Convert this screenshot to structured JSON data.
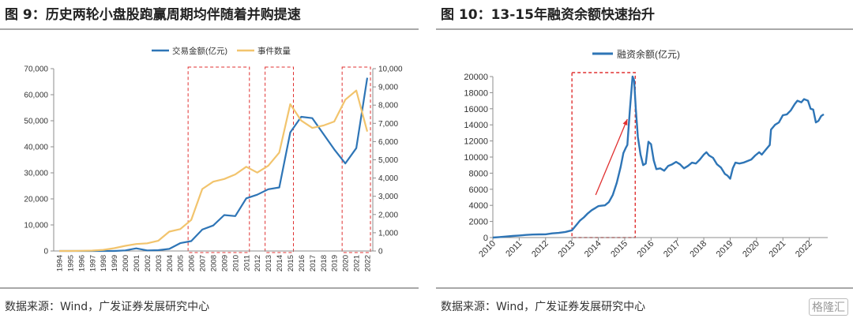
{
  "left": {
    "title": "图 9：历史两轮小盘股跑赢周期均伴随着并购提速",
    "source": "数据来源：Wind，广发证券发展研究中心"
  },
  "right": {
    "title": "图 10：13-15年融资余额快速抬升",
    "source": "数据来源：Wind，广发证券发展研究中心",
    "watermark": "格隆汇"
  },
  "colors": {
    "blue": "#2e75b6",
    "gold": "#f2c46d",
    "red": "#e03030",
    "axis": "#8c8c8c"
  },
  "chart_data": [
    {
      "type": "line",
      "title": "",
      "categories": [
        "1994",
        "1995",
        "1996",
        "1997",
        "1998",
        "1999",
        "2000",
        "2001",
        "2002",
        "2003",
        "2004",
        "2005",
        "2006",
        "2007",
        "2008",
        "2009",
        "2010",
        "2011",
        "2012",
        "2013",
        "2014",
        "2015",
        "2016",
        "2017",
        "2018",
        "2019",
        "2020",
        "2021",
        "2022"
      ],
      "series": [
        {
          "name": "交易金额(亿元)",
          "axis": "left",
          "color": "#2e75b6",
          "values": [
            0,
            0,
            0,
            0,
            0,
            0,
            200,
            1000,
            200,
            300,
            800,
            3000,
            3800,
            8200,
            9800,
            13800,
            13400,
            20200,
            21600,
            23700,
            24400,
            45500,
            51500,
            51000,
            45000,
            39000,
            33600,
            39500,
            66500
          ]
        },
        {
          "name": "事件数量",
          "axis": "right",
          "color": "#f2c46d",
          "values": [
            0,
            0,
            10,
            20,
            60,
            150,
            280,
            380,
            420,
            560,
            1060,
            1200,
            1700,
            3400,
            3800,
            3950,
            4200,
            4620,
            4300,
            4680,
            5400,
            8050,
            7150,
            6750,
            6880,
            7100,
            8300,
            8800,
            6550
          ]
        }
      ],
      "y_left": {
        "min": 0,
        "max": 70000,
        "ticks": [
          0,
          10000,
          20000,
          30000,
          40000,
          50000,
          60000,
          70000
        ],
        "tick_labels": [
          "0",
          "10,000",
          "20,000",
          "30,000",
          "40,000",
          "50,000",
          "60,000",
          "70,000"
        ]
      },
      "y_right": {
        "min": 0,
        "max": 10000,
        "ticks": [
          0,
          1000,
          2000,
          3000,
          4000,
          5000,
          6000,
          7000,
          8000,
          9000,
          10000
        ],
        "tick_labels": [
          "0",
          "1,000",
          "2,000",
          "3,000",
          "4,000",
          "5,000",
          "6,000",
          "7,000",
          "8,000",
          "9,000",
          "10,000"
        ]
      },
      "highlight_ranges": [
        [
          "2006",
          "2011"
        ],
        [
          "2013",
          "2015"
        ],
        [
          "2020",
          "2022"
        ]
      ],
      "legend_position": "top-center",
      "grid": false
    },
    {
      "type": "line",
      "title": "",
      "legend_position": "top-center",
      "grid": false,
      "x_ticks": [
        "2010",
        "2011",
        "2012",
        "2013",
        "2014",
        "2015",
        "2016",
        "2017",
        "2018",
        "2019",
        "2020",
        "2021",
        "2022"
      ],
      "y": {
        "min": 0,
        "max": 20000,
        "ticks": [
          0,
          2000,
          4000,
          6000,
          8000,
          10000,
          12000,
          14000,
          16000,
          18000,
          20000
        ],
        "tick_labels": [
          "0",
          "2000",
          "4000",
          "6000",
          "8000",
          "10000",
          "12000",
          "14000",
          "16000",
          "18000",
          "20000"
        ]
      },
      "highlight_range": [
        2013.0,
        2015.4
      ],
      "trend_arrow": {
        "from": [
          2013.9,
          5300
        ],
        "to": [
          2015.1,
          14700
        ]
      },
      "series": [
        {
          "name": "融资余额(亿元)",
          "color": "#2e75b6",
          "points": [
            [
              2010.0,
              0
            ],
            [
              2010.25,
              60
            ],
            [
              2010.5,
              130
            ],
            [
              2010.75,
              200
            ],
            [
              2011.0,
              250
            ],
            [
              2011.25,
              320
            ],
            [
              2011.5,
              370
            ],
            [
              2011.75,
              390
            ],
            [
              2012.0,
              400
            ],
            [
              2012.25,
              520
            ],
            [
              2012.5,
              580
            ],
            [
              2012.75,
              700
            ],
            [
              2013.0,
              900
            ],
            [
              2013.15,
              1500
            ],
            [
              2013.3,
              2100
            ],
            [
              2013.45,
              2500
            ],
            [
              2013.6,
              3000
            ],
            [
              2013.75,
              3400
            ],
            [
              2013.9,
              3700
            ],
            [
              2014.0,
              3900
            ],
            [
              2014.1,
              3950
            ],
            [
              2014.25,
              4000
            ],
            [
              2014.4,
              4400
            ],
            [
              2014.55,
              5300
            ],
            [
              2014.7,
              6800
            ],
            [
              2014.85,
              8800
            ],
            [
              2014.95,
              10500
            ],
            [
              2015.05,
              11200
            ],
            [
              2015.1,
              11500
            ],
            [
              2015.2,
              16000
            ],
            [
              2015.3,
              20000
            ],
            [
              2015.36,
              19500
            ],
            [
              2015.42,
              16000
            ],
            [
              2015.5,
              12500
            ],
            [
              2015.6,
              10300
            ],
            [
              2015.7,
              9000
            ],
            [
              2015.8,
              9200
            ],
            [
              2015.9,
              11900
            ],
            [
              2016.0,
              11600
            ],
            [
              2016.1,
              9600
            ],
            [
              2016.2,
              8500
            ],
            [
              2016.35,
              8600
            ],
            [
              2016.5,
              8300
            ],
            [
              2016.65,
              8900
            ],
            [
              2016.8,
              9100
            ],
            [
              2016.95,
              9400
            ],
            [
              2017.1,
              9100
            ],
            [
              2017.25,
              8600
            ],
            [
              2017.4,
              8900
            ],
            [
              2017.55,
              9300
            ],
            [
              2017.7,
              9200
            ],
            [
              2017.85,
              9700
            ],
            [
              2018.0,
              10300
            ],
            [
              2018.1,
              10600
            ],
            [
              2018.2,
              10200
            ],
            [
              2018.35,
              9900
            ],
            [
              2018.5,
              9100
            ],
            [
              2018.65,
              8700
            ],
            [
              2018.8,
              7900
            ],
            [
              2018.9,
              7700
            ],
            [
              2019.0,
              7300
            ],
            [
              2019.1,
              8600
            ],
            [
              2019.2,
              9300
            ],
            [
              2019.35,
              9200
            ],
            [
              2019.5,
              9300
            ],
            [
              2019.65,
              9500
            ],
            [
              2019.8,
              9700
            ],
            [
              2019.95,
              10200
            ],
            [
              2020.1,
              10600
            ],
            [
              2020.2,
              10300
            ],
            [
              2020.35,
              10900
            ],
            [
              2020.5,
              11500
            ],
            [
              2020.55,
              13400
            ],
            [
              2020.7,
              14000
            ],
            [
              2020.85,
              14300
            ],
            [
              2021.0,
              15200
            ],
            [
              2021.15,
              15300
            ],
            [
              2021.3,
              15800
            ],
            [
              2021.45,
              16600
            ],
            [
              2021.55,
              17000
            ],
            [
              2021.7,
              16800
            ],
            [
              2021.8,
              17200
            ],
            [
              2021.95,
              17000
            ],
            [
              2022.05,
              16000
            ],
            [
              2022.15,
              15900
            ],
            [
              2022.25,
              14300
            ],
            [
              2022.35,
              14500
            ],
            [
              2022.45,
              15100
            ],
            [
              2022.55,
              15300
            ]
          ]
        }
      ]
    }
  ]
}
